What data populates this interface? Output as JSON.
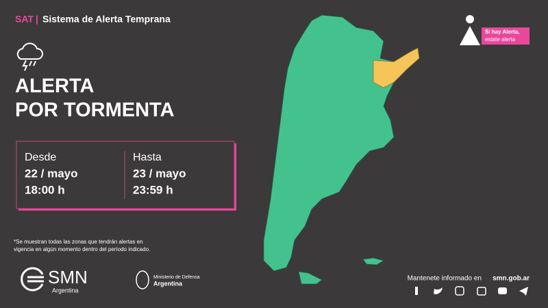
{
  "header": {
    "tag": "SAT",
    "separator": "|",
    "title": "Sistema de Alerta Temprana"
  },
  "alert": {
    "lines": [
      "ALERTA",
      "POR TORMENTA"
    ]
  },
  "period": {
    "from": {
      "label": "Desde",
      "date": "22 / mayo",
      "time": "18:00 h"
    },
    "to": {
      "label": "Hasta",
      "date": "23 / mayo",
      "time": "23:59 h"
    }
  },
  "footnote": [
    "*Se muestran todas las zonas que tendrán alertas en",
    "vigencia en algún momento dentro del período indicado."
  ],
  "badge": {
    "line1": "Si hay Alerta,",
    "line2": "estate alerta"
  },
  "logos": {
    "smn": "SMN",
    "smn_country": "Argentina",
    "ministry": "Ministerio de Defensa",
    "ministry_country": "Argentina"
  },
  "footer": {
    "text": "Mantenete informado en",
    "url": "smn.gob.ar"
  }
}
